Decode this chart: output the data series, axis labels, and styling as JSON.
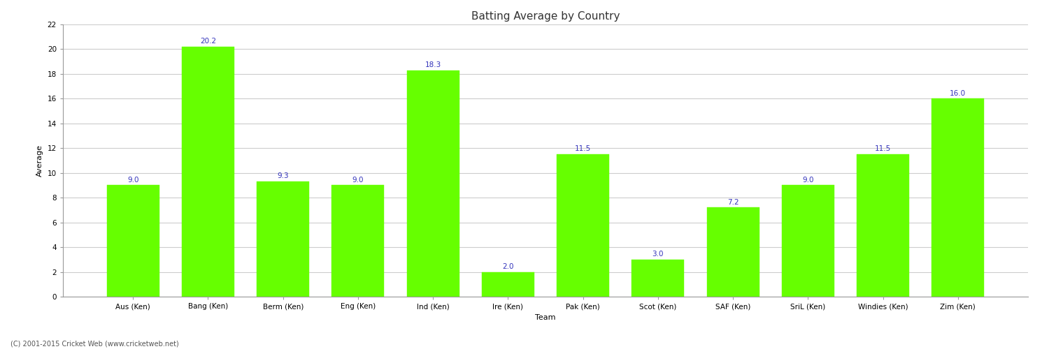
{
  "title": "Batting Average by Country",
  "xlabel": "Team",
  "ylabel": "Average",
  "categories": [
    "Aus (Ken)",
    "Bang (Ken)",
    "Berm (Ken)",
    "Eng (Ken)",
    "Ind (Ken)",
    "Ire (Ken)",
    "Pak (Ken)",
    "Scot (Ken)",
    "SAF (Ken)",
    "SriL (Ken)",
    "Windies (Ken)",
    "Zim (Ken)"
  ],
  "values": [
    9.0,
    20.2,
    9.3,
    9.0,
    18.3,
    2.0,
    11.5,
    3.0,
    7.2,
    9.0,
    11.5,
    16.0
  ],
  "bar_color": "#66ff00",
  "bar_edge_color": "#66ff00",
  "label_color": "#3333bb",
  "label_fontsize": 7.5,
  "ylim": [
    0,
    22
  ],
  "yticks": [
    0,
    2,
    4,
    6,
    8,
    10,
    12,
    14,
    16,
    18,
    20,
    22
  ],
  "grid_color": "#cccccc",
  "background_color": "#ffffff",
  "fig_width": 15.0,
  "fig_height": 5.0,
  "footer": "(C) 2001-2015 Cricket Web (www.cricketweb.net)",
  "axis_label_fontsize": 8,
  "tick_label_fontsize": 7.5,
  "bar_width": 0.7
}
